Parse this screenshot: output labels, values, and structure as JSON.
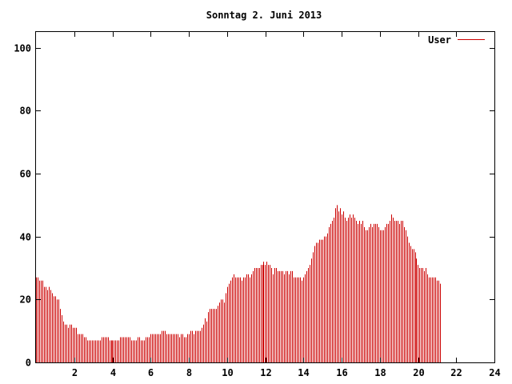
{
  "chart_data": {
    "type": "bar",
    "title": "Sonntag 2. Juni 2013",
    "xlabel": "",
    "ylabel": "",
    "xlim": [
      0,
      24
    ],
    "ylim": [
      0,
      105
    ],
    "xticks": [
      2,
      4,
      6,
      8,
      10,
      12,
      14,
      16,
      18,
      20,
      22,
      24
    ],
    "yticks": [
      0,
      20,
      40,
      60,
      80,
      100
    ],
    "grid": false,
    "legend_position": "top-right",
    "bar_color": "#cc0000",
    "series": [
      {
        "name": "User",
        "x_start": 0,
        "x_step": 0.08333,
        "values": [
          27,
          27,
          26,
          26,
          26,
          24,
          24,
          23,
          24,
          23,
          22,
          21,
          21,
          20,
          20,
          17,
          15,
          13,
          12,
          12,
          11,
          12,
          12,
          11,
          11,
          11,
          9,
          9,
          9,
          9,
          8,
          8,
          7,
          7,
          7,
          7,
          7,
          7,
          7,
          7,
          7,
          8,
          8,
          8,
          8,
          8,
          7,
          7,
          7,
          7,
          7,
          7,
          7,
          8,
          8,
          8,
          8,
          8,
          8,
          8,
          7,
          7,
          7,
          7,
          8,
          8,
          7,
          7,
          7,
          8,
          8,
          8,
          9,
          9,
          9,
          9,
          9,
          9,
          9,
          10,
          10,
          10,
          9,
          9,
          9,
          9,
          9,
          9,
          9,
          9,
          8,
          9,
          9,
          8,
          8,
          9,
          9,
          10,
          10,
          9,
          10,
          10,
          10,
          10,
          11,
          12,
          14,
          13,
          16,
          17,
          17,
          17,
          17,
          17,
          18,
          19,
          20,
          20,
          19,
          22,
          24,
          25,
          26,
          27,
          28,
          27,
          27,
          27,
          27,
          26,
          27,
          27,
          28,
          28,
          27,
          28,
          29,
          30,
          30,
          30,
          30,
          31,
          31,
          32,
          31,
          32,
          31,
          31,
          30,
          28,
          30,
          30,
          29,
          29,
          29,
          29,
          28,
          29,
          29,
          28,
          29,
          29,
          27,
          27,
          27,
          27,
          27,
          26,
          27,
          28,
          29,
          30,
          31,
          33,
          35,
          37,
          38,
          38,
          39,
          39,
          39,
          40,
          40,
          41,
          43,
          44,
          45,
          46,
          49,
          50,
          48,
          49,
          47,
          48,
          46,
          45,
          46,
          47,
          46,
          47,
          46,
          45,
          44,
          45,
          44,
          45,
          43,
          42,
          42,
          43,
          44,
          43,
          44,
          44,
          44,
          43,
          42,
          42,
          42,
          43,
          44,
          44,
          45,
          47,
          46,
          45,
          45,
          45,
          44,
          45,
          45,
          43,
          42,
          40,
          38,
          37,
          36,
          36,
          35,
          33,
          31,
          30,
          30,
          30,
          29,
          30,
          28,
          27,
          27,
          27,
          27,
          27,
          26,
          26,
          25
        ]
      }
    ]
  }
}
